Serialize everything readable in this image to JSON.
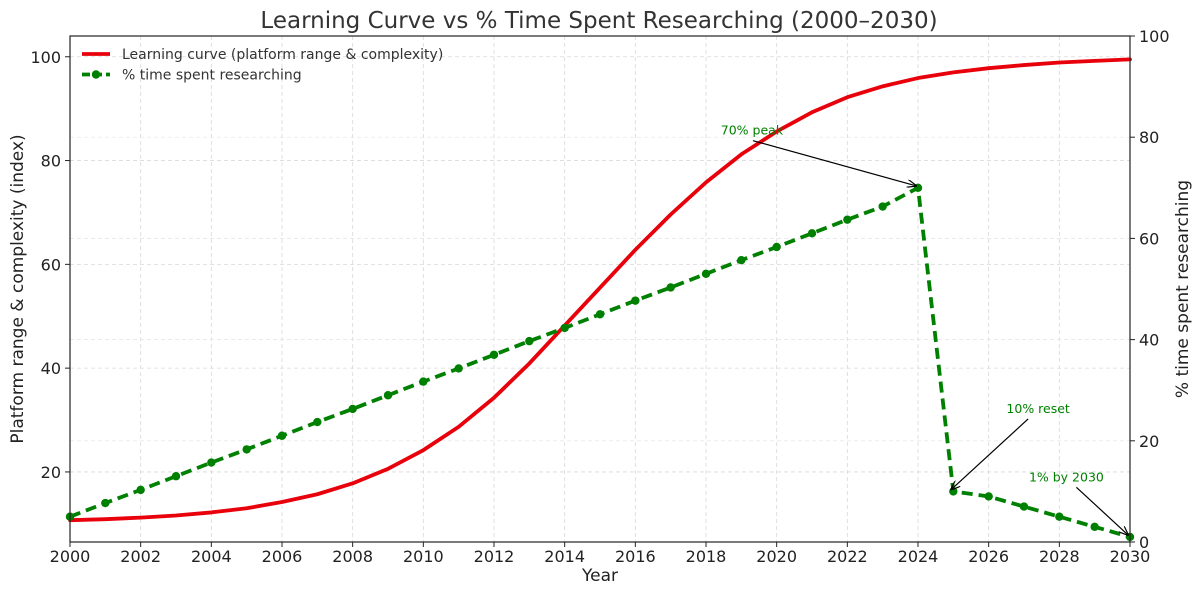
{
  "chart_data": {
    "type": "line",
    "title": "Learning Curve vs % Time Spent Researching (2000–2030)",
    "xlabel": "Year",
    "ylabel": "Platform range & complexity (index)",
    "ylabel_right": "% time spent researching",
    "xlim": [
      2000,
      2030
    ],
    "ylim": [
      6.5,
      104
    ],
    "ylim_right": [
      0,
      100
    ],
    "x_ticks": [
      "2000",
      "2002",
      "2004",
      "2006",
      "2008",
      "2010",
      "2012",
      "2014",
      "2016",
      "2018",
      "2020",
      "2022",
      "2024",
      "2026",
      "2028",
      "2030"
    ],
    "y_ticks": [
      "20",
      "40",
      "60",
      "80",
      "100"
    ],
    "y_ticks_right": [
      "0",
      "20",
      "40",
      "60",
      "80",
      "100"
    ],
    "grid": true,
    "legend_position": "top-left",
    "series": [
      {
        "name": "Learning curve (platform range & complexity)",
        "axis": "left",
        "color": "#e8000b",
        "style": "solid",
        "markers": false,
        "x": [
          2000,
          2001,
          2002,
          2003,
          2004,
          2005,
          2006,
          2007,
          2008,
          2009,
          2010,
          2011,
          2012,
          2013,
          2014,
          2015,
          2016,
          2017,
          2018,
          2019,
          2020,
          2021,
          2022,
          2023,
          2024,
          2025,
          2026,
          2027,
          2028,
          2029,
          2030
        ],
        "values": [
          10.7,
          10.9,
          11.2,
          11.6,
          12.2,
          13.0,
          14.2,
          15.7,
          17.8,
          20.6,
          24.2,
          28.7,
          34.3,
          40.9,
          48.2,
          55.5,
          62.8,
          69.6,
          75.8,
          81.2,
          85.6,
          89.3,
          92.2,
          94.3,
          95.9,
          97.0,
          97.8,
          98.4,
          98.9,
          99.2,
          99.5
        ]
      },
      {
        "name": "% time spent researching",
        "axis": "right",
        "color": "#008000",
        "style": "dashed",
        "markers": true,
        "x": [
          2000,
          2001,
          2002,
          2003,
          2004,
          2005,
          2006,
          2007,
          2008,
          2009,
          2010,
          2011,
          2012,
          2013,
          2014,
          2015,
          2016,
          2017,
          2018,
          2019,
          2020,
          2021,
          2022,
          2023,
          2024,
          2025,
          2026,
          2027,
          2028,
          2029,
          2030
        ],
        "values": [
          5,
          7.7,
          10.3,
          13.0,
          15.7,
          18.3,
          21.0,
          23.7,
          26.3,
          29.0,
          31.7,
          34.3,
          37.0,
          39.7,
          42.3,
          45.0,
          47.7,
          50.3,
          53.0,
          55.7,
          58.3,
          61.0,
          63.7,
          66.3,
          70,
          10,
          9,
          7,
          5,
          3,
          1
        ]
      }
    ],
    "annotations": [
      {
        "text": "70% peak",
        "x": 2024,
        "y": 70,
        "text_x": 2019.3,
        "text_y": 80.5,
        "axis": "right"
      },
      {
        "text": "10% reset",
        "x": 2025,
        "y": 10,
        "text_x": 2027.4,
        "text_y": 25.5,
        "axis": "right"
      },
      {
        "text": "1% by 2030",
        "x": 2030,
        "y": 1,
        "text_x": 2028.2,
        "text_y": 12,
        "axis": "right"
      }
    ]
  }
}
